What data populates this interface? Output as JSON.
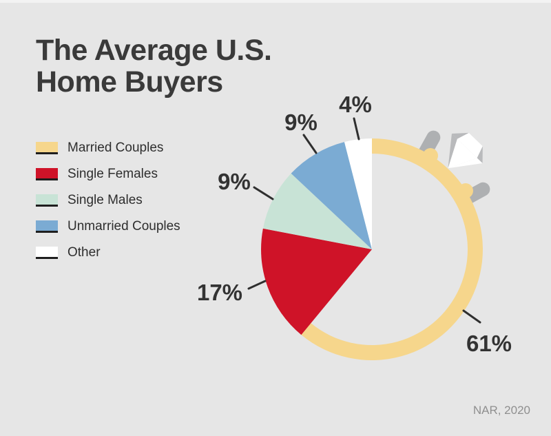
{
  "title": {
    "line1": "The Average U.S.",
    "line2": "Home Buyers"
  },
  "source": "NAR, 2020",
  "colors": {
    "background": "#e6e6e6",
    "text_dark": "#333333",
    "source_text": "#8f8f8f",
    "legend_underline": "#1e1e1e",
    "diamond_gray": "#b9babc",
    "diamond_white": "#ffffff"
  },
  "chart_data": {
    "type": "pie",
    "title": "The Average U.S. Home Buyers",
    "unit": "%",
    "direction": "clockwise",
    "start_angle_deg": 0,
    "legend_position": "left",
    "categories": [
      "Married Couples",
      "Single Females",
      "Single Males",
      "Unmarried Couples",
      "Other"
    ],
    "values": [
      61,
      17,
      9,
      9,
      4
    ],
    "slices": [
      {
        "label": "Married Couples",
        "value": 61,
        "display": "61%",
        "color": "#f6d68c",
        "style": "ring"
      },
      {
        "label": "Single Females",
        "value": 17,
        "display": "17%",
        "color": "#cf1328",
        "style": "wedge"
      },
      {
        "label": "Single Males",
        "value": 9,
        "display": "9%",
        "color": "#c8e3d6",
        "style": "wedge"
      },
      {
        "label": "Unmarried Couples",
        "value": 9,
        "display": "9%",
        "color": "#7babd3",
        "style": "wedge"
      },
      {
        "label": "Other",
        "value": 4,
        "display": "4%",
        "color": "#ffffff",
        "style": "wedge"
      }
    ]
  }
}
